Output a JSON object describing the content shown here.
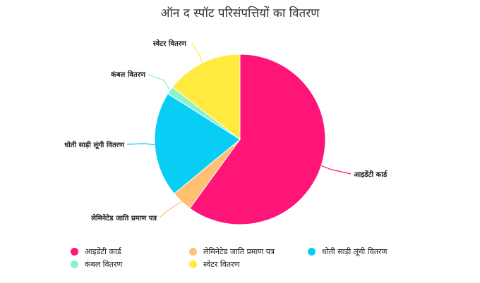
{
  "chart_data": {
    "type": "pie",
    "title": "ऑन द स्पॉट परिसंपत्तियों का वितरण",
    "legend_position": "bottom",
    "slices": [
      {
        "label": "आइडेंटी कार्ड",
        "value": 60,
        "color": "#ff1577"
      },
      {
        "label": "लेमिनेटेड जाति प्रमाण पत्र",
        "value": 4,
        "color": "#ffc074"
      },
      {
        "label": "धोती साड़ी लूंगी वितरण",
        "value": 20,
        "color": "#08cdf5"
      },
      {
        "label": "कंबल वितरण",
        "value": 1.5,
        "color": "#8ef2c9"
      },
      {
        "label": "स्वेटर वितरण",
        "value": 14.5,
        "color": "#ffea3d"
      }
    ]
  }
}
